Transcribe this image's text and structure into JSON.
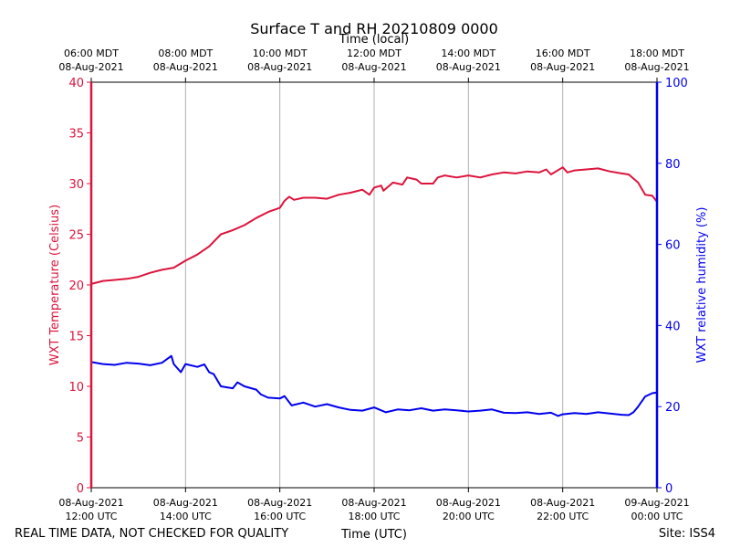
{
  "chart_data": {
    "type": "line",
    "title": "Surface T and RH 20210809 0000",
    "top_axis_label": "Time (local)",
    "xlabel": "Time (UTC)",
    "ylabel_left": "WXT Temperature (Celsius)",
    "ylabel_right": "WXT relative humidity (%)",
    "footer_left": "REAL TIME DATA, NOT CHECKED FOR QUALITY",
    "footer_right": "Site: ISS4",
    "x_range_hours_utc": [
      12,
      24
    ],
    "ylim_left": [
      0,
      40
    ],
    "ylim_right": [
      0,
      100
    ],
    "left_ticks": [
      0,
      5,
      10,
      15,
      20,
      25,
      30,
      35,
      40
    ],
    "right_ticks": [
      0,
      20,
      40,
      60,
      80,
      100
    ],
    "bottom_ticks": [
      {
        "hour": 12,
        "line1": "08-Aug-2021",
        "line2": "12:00 UTC"
      },
      {
        "hour": 14,
        "line1": "08-Aug-2021",
        "line2": "14:00 UTC"
      },
      {
        "hour": 16,
        "line1": "08-Aug-2021",
        "line2": "16:00 UTC"
      },
      {
        "hour": 18,
        "line1": "08-Aug-2021",
        "line2": "18:00 UTC"
      },
      {
        "hour": 20,
        "line1": "08-Aug-2021",
        "line2": "20:00 UTC"
      },
      {
        "hour": 22,
        "line1": "08-Aug-2021",
        "line2": "22:00 UTC"
      },
      {
        "hour": 24,
        "line1": "09-Aug-2021",
        "line2": "00:00 UTC"
      }
    ],
    "top_ticks": [
      {
        "hour": 12,
        "line1": "06:00 MDT",
        "line2": "08-Aug-2021"
      },
      {
        "hour": 14,
        "line1": "08:00 MDT",
        "line2": "08-Aug-2021"
      },
      {
        "hour": 16,
        "line1": "10:00 MDT",
        "line2": "08-Aug-2021"
      },
      {
        "hour": 18,
        "line1": "12:00 MDT",
        "line2": "08-Aug-2021"
      },
      {
        "hour": 20,
        "line1": "14:00 MDT",
        "line2": "08-Aug-2021"
      },
      {
        "hour": 22,
        "line1": "16:00 MDT",
        "line2": "08-Aug-2021"
      },
      {
        "hour": 24,
        "line1": "18:00 MDT",
        "line2": "08-Aug-2021"
      }
    ],
    "series": [
      {
        "name": "WXT Temperature (Celsius)",
        "axis": "left",
        "color": "#dc143c",
        "points": [
          [
            12.0,
            20.1
          ],
          [
            12.25,
            20.4
          ],
          [
            12.5,
            20.5
          ],
          [
            12.75,
            20.6
          ],
          [
            13.0,
            20.8
          ],
          [
            13.25,
            21.2
          ],
          [
            13.5,
            21.5
          ],
          [
            13.75,
            21.7
          ],
          [
            14.0,
            22.4
          ],
          [
            14.25,
            23.0
          ],
          [
            14.5,
            23.8
          ],
          [
            14.75,
            25.0
          ],
          [
            15.0,
            25.4
          ],
          [
            15.25,
            25.9
          ],
          [
            15.5,
            26.6
          ],
          [
            15.75,
            27.2
          ],
          [
            16.0,
            27.6
          ],
          [
            16.1,
            28.3
          ],
          [
            16.2,
            28.7
          ],
          [
            16.3,
            28.4
          ],
          [
            16.5,
            28.6
          ],
          [
            16.75,
            28.6
          ],
          [
            17.0,
            28.5
          ],
          [
            17.25,
            28.9
          ],
          [
            17.5,
            29.1
          ],
          [
            17.75,
            29.4
          ],
          [
            17.9,
            28.9
          ],
          [
            18.0,
            29.6
          ],
          [
            18.15,
            29.8
          ],
          [
            18.2,
            29.3
          ],
          [
            18.4,
            30.1
          ],
          [
            18.6,
            29.9
          ],
          [
            18.7,
            30.6
          ],
          [
            18.9,
            30.4
          ],
          [
            19.0,
            30.0
          ],
          [
            19.25,
            30.0
          ],
          [
            19.35,
            30.6
          ],
          [
            19.5,
            30.8
          ],
          [
            19.75,
            30.6
          ],
          [
            20.0,
            30.8
          ],
          [
            20.25,
            30.6
          ],
          [
            20.5,
            30.9
          ],
          [
            20.75,
            31.1
          ],
          [
            21.0,
            31.0
          ],
          [
            21.25,
            31.2
          ],
          [
            21.5,
            31.1
          ],
          [
            21.65,
            31.4
          ],
          [
            21.75,
            30.9
          ],
          [
            22.0,
            31.6
          ],
          [
            22.1,
            31.1
          ],
          [
            22.25,
            31.3
          ],
          [
            22.5,
            31.4
          ],
          [
            22.75,
            31.5
          ],
          [
            23.0,
            31.2
          ],
          [
            23.25,
            31.0
          ],
          [
            23.4,
            30.9
          ],
          [
            23.5,
            30.5
          ],
          [
            23.6,
            30.1
          ],
          [
            23.75,
            28.9
          ],
          [
            23.9,
            28.8
          ],
          [
            24.0,
            28.2
          ]
        ]
      },
      {
        "name": "WXT relative humidity (%)",
        "axis": "right",
        "color": "#0000ee",
        "points": [
          [
            12.0,
            31.0
          ],
          [
            12.25,
            30.5
          ],
          [
            12.5,
            30.3
          ],
          [
            12.75,
            30.8
          ],
          [
            13.0,
            30.6
          ],
          [
            13.25,
            30.2
          ],
          [
            13.5,
            30.8
          ],
          [
            13.7,
            32.5
          ],
          [
            13.75,
            30.5
          ],
          [
            13.9,
            28.5
          ],
          [
            14.0,
            30.5
          ],
          [
            14.25,
            29.8
          ],
          [
            14.4,
            30.4
          ],
          [
            14.5,
            28.5
          ],
          [
            14.6,
            28.0
          ],
          [
            14.75,
            25.0
          ],
          [
            15.0,
            24.5
          ],
          [
            15.1,
            26.0
          ],
          [
            15.25,
            25.0
          ],
          [
            15.5,
            24.2
          ],
          [
            15.6,
            23.0
          ],
          [
            15.75,
            22.2
          ],
          [
            16.0,
            22.0
          ],
          [
            16.1,
            22.6
          ],
          [
            16.25,
            20.3
          ],
          [
            16.5,
            21.0
          ],
          [
            16.75,
            20.0
          ],
          [
            17.0,
            20.6
          ],
          [
            17.25,
            19.8
          ],
          [
            17.5,
            19.2
          ],
          [
            17.75,
            19.0
          ],
          [
            18.0,
            19.8
          ],
          [
            18.25,
            18.6
          ],
          [
            18.5,
            19.3
          ],
          [
            18.75,
            19.1
          ],
          [
            19.0,
            19.6
          ],
          [
            19.25,
            19.0
          ],
          [
            19.5,
            19.3
          ],
          [
            19.75,
            19.1
          ],
          [
            20.0,
            18.8
          ],
          [
            20.25,
            19.0
          ],
          [
            20.5,
            19.3
          ],
          [
            20.75,
            18.5
          ],
          [
            21.0,
            18.4
          ],
          [
            21.25,
            18.6
          ],
          [
            21.5,
            18.2
          ],
          [
            21.75,
            18.5
          ],
          [
            21.9,
            17.7
          ],
          [
            22.0,
            18.1
          ],
          [
            22.25,
            18.4
          ],
          [
            22.5,
            18.2
          ],
          [
            22.75,
            18.6
          ],
          [
            23.0,
            18.3
          ],
          [
            23.25,
            18.0
          ],
          [
            23.4,
            17.9
          ],
          [
            23.5,
            18.6
          ],
          [
            23.6,
            20.0
          ],
          [
            23.75,
            22.5
          ],
          [
            23.9,
            23.3
          ],
          [
            24.0,
            23.5
          ]
        ]
      }
    ]
  }
}
